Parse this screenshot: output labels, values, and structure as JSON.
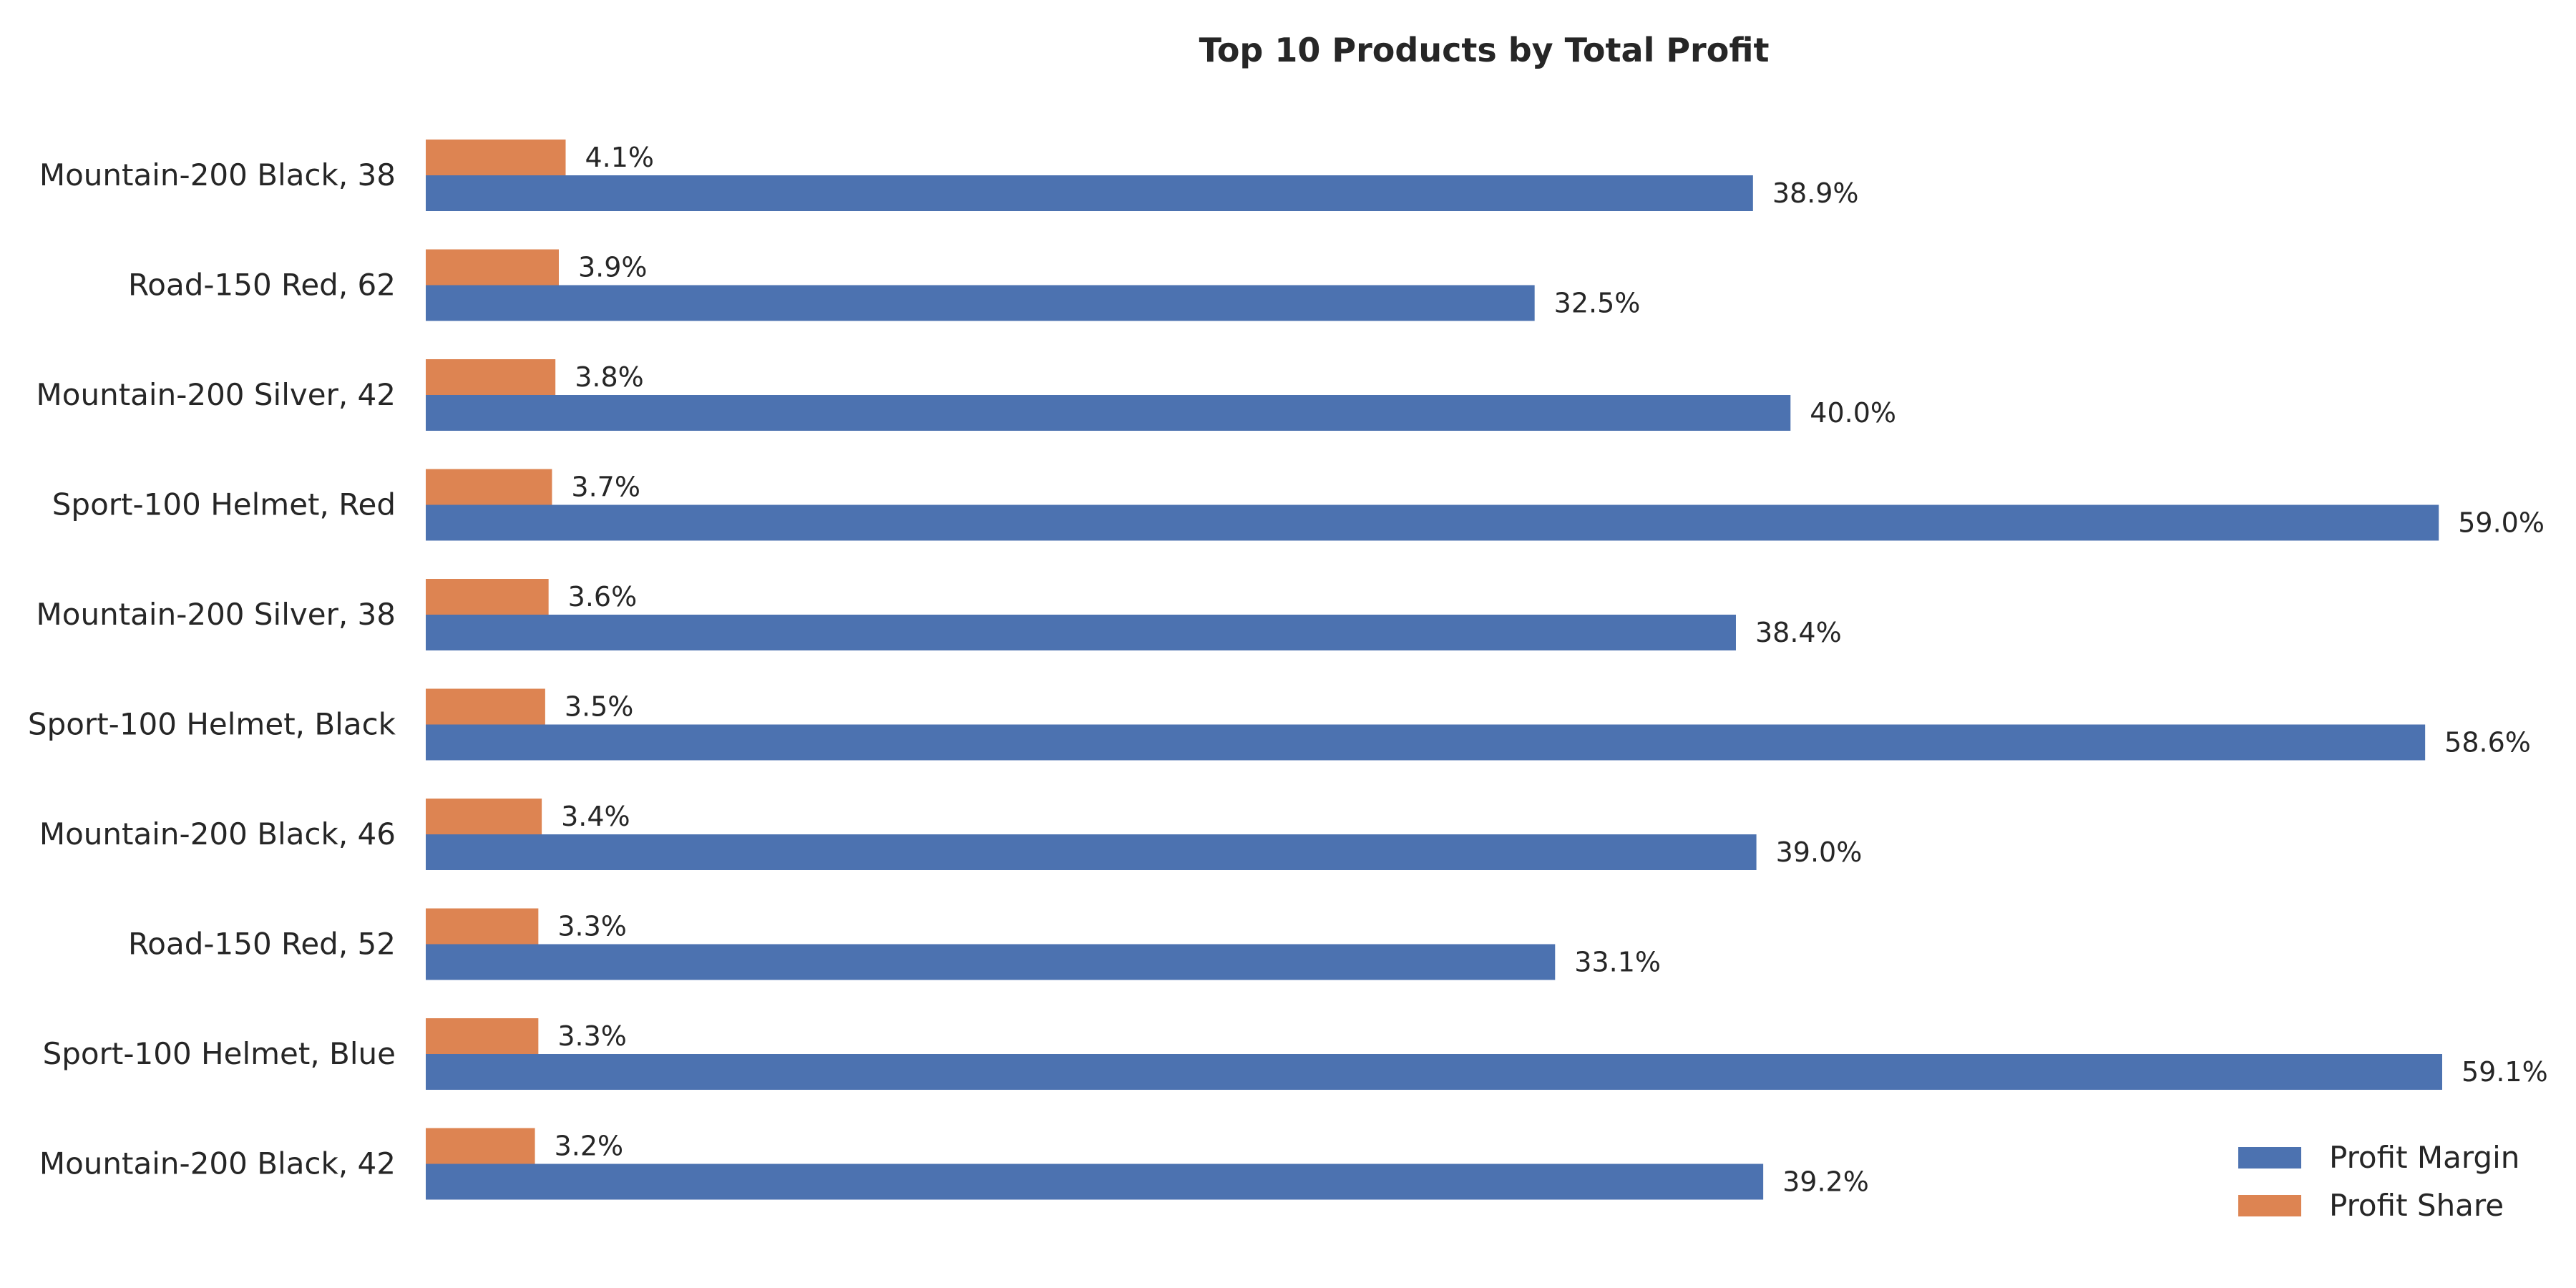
{
  "chart_data": {
    "type": "bar",
    "orientation": "horizontal",
    "title": "Top 10 Products by Total Profit",
    "xlabel": "",
    "ylabel": "",
    "xlim": [
      0,
      60
    ],
    "grid": false,
    "legend_position": "bottom-right",
    "value_format": "percent-1dp",
    "categories": [
      "Mountain-200 Black, 38",
      "Road-150 Red, 62",
      "Mountain-200 Silver, 42",
      "Sport-100 Helmet, Red",
      "Mountain-200 Silver, 38",
      "Sport-100 Helmet, Black",
      "Mountain-200 Black, 46",
      "Road-150 Red, 52",
      "Sport-100 Helmet, Blue",
      "Mountain-200 Black, 42"
    ],
    "series": [
      {
        "name": "Profit Share",
        "color": "#DD8452",
        "values": [
          4.1,
          3.9,
          3.8,
          3.7,
          3.6,
          3.5,
          3.4,
          3.3,
          3.3,
          3.2
        ]
      },
      {
        "name": "Profit Margin",
        "color": "#4C72B0",
        "values": [
          38.9,
          32.5,
          40.0,
          59.0,
          38.4,
          58.6,
          39.0,
          33.1,
          59.1,
          39.2
        ]
      }
    ],
    "legend_order": [
      "Profit Margin",
      "Profit Share"
    ]
  }
}
